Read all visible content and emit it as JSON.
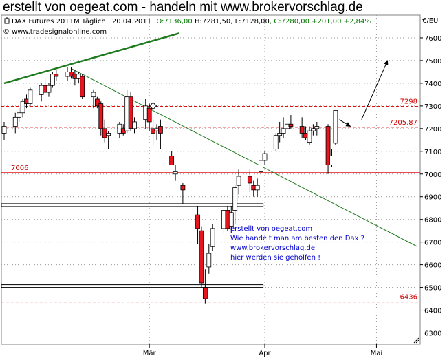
{
  "title": "erstellt von oegeat.com - handeln mit www.brokervorschlag.de",
  "instrument": "DAX Futures 2011M Täglich",
  "date": "20.04.2011",
  "ohlc": {
    "open": "O:7136,00",
    "high": "H:7281,50",
    "low": "L:7128,00",
    "close": "C:7280,00 +201,00 +2,84%"
  },
  "source": "www.tradesignalonline.com",
  "unit": "€/EU",
  "colors": {
    "bull": "#ffffff",
    "bear": "#e8141e",
    "trend": "#1e7a1e",
    "level": "#e01010",
    "note": "#0000cc",
    "grid": "#9a9a9a"
  },
  "annotation": [
    "erstellt von oegeat.com",
    "Wie handelt man am besten den Dax ?",
    "www.brokervorschlag.de",
    "hier werden sie geholfen !"
  ],
  "chart_data": {
    "type": "candlestick",
    "ylim": [
      6250,
      7700
    ],
    "yticks": [
      6300,
      6400,
      6500,
      6600,
      6700,
      6800,
      6900,
      7000,
      7100,
      7200,
      7300,
      7400,
      7500,
      7600
    ],
    "ytick_labels": [
      "6300",
      "6400",
      "6500",
      "6600",
      "6700",
      "6800",
      "6900",
      "7000",
      "7100",
      "7200",
      "7300",
      "7400",
      "7500",
      "7600"
    ],
    "xticks": [
      "Mär",
      "Apr",
      "Mai"
    ],
    "x_start": "2011-01-21",
    "x_end": "2011-05-12",
    "candles": [
      {
        "d": "2011-01-21",
        "o": 7180,
        "h": 7230,
        "l": 7150,
        "c": 7210
      },
      {
        "d": "2011-01-24",
        "o": 7210,
        "h": 7270,
        "l": 7180,
        "c": 7250
      },
      {
        "d": "2011-01-25",
        "o": 7250,
        "h": 7290,
        "l": 7230,
        "c": 7270
      },
      {
        "d": "2011-01-26",
        "o": 7270,
        "h": 7330,
        "l": 7250,
        "c": 7320
      },
      {
        "d": "2011-01-27",
        "o": 7330,
        "h": 7350,
        "l": 7290,
        "c": 7310
      },
      {
        "d": "2011-01-28",
        "o": 7310,
        "h": 7380,
        "l": 7300,
        "c": 7370
      },
      {
        "d": "2011-01-31",
        "o": 7350,
        "h": 7400,
        "l": 7320,
        "c": 7390
      },
      {
        "d": "2011-02-01",
        "o": 7390,
        "h": 7420,
        "l": 7360,
        "c": 7360
      },
      {
        "d": "2011-02-02",
        "o": 7360,
        "h": 7400,
        "l": 7340,
        "c": 7390
      },
      {
        "d": "2011-02-03",
        "o": 7390,
        "h": 7450,
        "l": 7380,
        "c": 7440
      },
      {
        "d": "2011-02-04",
        "o": 7440,
        "h": 7460,
        "l": 7410,
        "c": 7430
      },
      {
        "d": "2011-02-07",
        "o": 7430,
        "h": 7470,
        "l": 7410,
        "c": 7450
      },
      {
        "d": "2011-02-08",
        "o": 7450,
        "h": 7470,
        "l": 7420,
        "c": 7430
      },
      {
        "d": "2011-02-09",
        "o": 7440,
        "h": 7460,
        "l": 7390,
        "c": 7420
      },
      {
        "d": "2011-02-10",
        "o": 7420,
        "h": 7450,
        "l": 7400,
        "c": 7440
      },
      {
        "d": "2011-02-11",
        "o": 7430,
        "h": 7440,
        "l": 7330,
        "c": 7340
      },
      {
        "d": "2011-02-14",
        "o": 7340,
        "h": 7370,
        "l": 7290,
        "c": 7360
      },
      {
        "d": "2011-02-15",
        "o": 7330,
        "h": 7340,
        "l": 7290,
        "c": 7300
      },
      {
        "d": "2011-02-16",
        "o": 7310,
        "h": 7320,
        "l": 7170,
        "c": 7200
      },
      {
        "d": "2011-02-17",
        "o": 7200,
        "h": 7240,
        "l": 7140,
        "c": 7160
      },
      {
        "d": "2011-02-18",
        "o": 7170,
        "h": 7190,
        "l": 7110,
        "c": 7180
      },
      {
        "d": "2011-02-21",
        "o": 7180,
        "h": 7230,
        "l": 7160,
        "c": 7220
      },
      {
        "d": "2011-02-22",
        "o": 7200,
        "h": 7220,
        "l": 7170,
        "c": 7180
      },
      {
        "d": "2011-02-23",
        "o": 7190,
        "h": 7370,
        "l": 7180,
        "c": 7340
      },
      {
        "d": "2011-02-24",
        "o": 7340,
        "h": 7360,
        "l": 7190,
        "c": 7200
      },
      {
        "d": "2011-02-25",
        "o": 7200,
        "h": 7250,
        "l": 7180,
        "c": 7230
      },
      {
        "d": "2011-02-28",
        "o": 7240,
        "h": 7330,
        "l": 7200,
        "c": 7300
      },
      {
        "d": "2011-03-01",
        "o": 7290,
        "h": 7310,
        "l": 7190,
        "c": 7230
      },
      {
        "d": "2011-03-02",
        "o": 7200,
        "h": 7240,
        "l": 7130,
        "c": 7180
      },
      {
        "d": "2011-03-03",
        "o": 7190,
        "h": 7220,
        "l": 7150,
        "c": 7200
      },
      {
        "d": "2011-03-04",
        "o": 7210,
        "h": 7240,
        "l": 7110,
        "c": 7180
      },
      {
        "d": "2011-03-07",
        "o": 7080,
        "h": 7100,
        "l": 7040,
        "c": 7040
      },
      {
        "d": "2011-03-08",
        "o": 7000,
        "h": 7040,
        "l": 6970,
        "c": 7010
      },
      {
        "d": "2011-03-10",
        "o": 6950,
        "h": 6960,
        "l": 6870,
        "c": 6930
      },
      {
        "d": "2011-03-14",
        "o": 6820,
        "h": 6860,
        "l": 6690,
        "c": 6760
      },
      {
        "d": "2011-03-15",
        "o": 6750,
        "h": 6770,
        "l": 6500,
        "c": 6520
      },
      {
        "d": "2011-03-16",
        "o": 6500,
        "h": 6580,
        "l": 6430,
        "c": 6450
      },
      {
        "d": "2011-03-17",
        "o": 6590,
        "h": 6690,
        "l": 6560,
        "c": 6650
      },
      {
        "d": "2011-03-18",
        "o": 6680,
        "h": 6780,
        "l": 6660,
        "c": 6760
      },
      {
        "d": "2011-03-21",
        "o": 6760,
        "h": 6840,
        "l": 6740,
        "c": 6840
      },
      {
        "d": "2011-03-22",
        "o": 6840,
        "h": 6860,
        "l": 6750,
        "c": 6760
      },
      {
        "d": "2011-03-23",
        "o": 6770,
        "h": 6860,
        "l": 6740,
        "c": 6830
      },
      {
        "d": "2011-03-24",
        "o": 6840,
        "h": 6950,
        "l": 6780,
        "c": 6940
      },
      {
        "d": "2011-03-25",
        "o": 6950,
        "h": 7020,
        "l": 6910,
        "c": 6990
      },
      {
        "d": "2011-03-28",
        "o": 6990,
        "h": 7020,
        "l": 6920,
        "c": 6960
      },
      {
        "d": "2011-03-29",
        "o": 6950,
        "h": 6970,
        "l": 6900,
        "c": 6930
      },
      {
        "d": "2011-03-30",
        "o": 6930,
        "h": 6980,
        "l": 6900,
        "c": 6950
      },
      {
        "d": "2011-03-31",
        "o": 7010,
        "h": 7060,
        "l": 7000,
        "c": 7060
      },
      {
        "d": "2011-04-01",
        "o": 7060,
        "h": 7100,
        "l": 7040,
        "c": 7090
      },
      {
        "d": "2011-04-04",
        "o": 7110,
        "h": 7180,
        "l": 7100,
        "c": 7170
      },
      {
        "d": "2011-04-05",
        "o": 7170,
        "h": 7230,
        "l": 7140,
        "c": 7180
      },
      {
        "d": "2011-04-06",
        "o": 7180,
        "h": 7250,
        "l": 7160,
        "c": 7200
      },
      {
        "d": "2011-04-07",
        "o": 7200,
        "h": 7250,
        "l": 7170,
        "c": 7220
      },
      {
        "d": "2011-04-08",
        "o": 7220,
        "h": 7260,
        "l": 7200,
        "c": 7210
      },
      {
        "d": "2011-04-11",
        "o": 7210,
        "h": 7250,
        "l": 7160,
        "c": 7180
      },
      {
        "d": "2011-04-12",
        "o": 7180,
        "h": 7210,
        "l": 7150,
        "c": 7160
      },
      {
        "d": "2011-04-13",
        "o": 7140,
        "h": 7210,
        "l": 7130,
        "c": 7190
      },
      {
        "d": "2011-04-14",
        "o": 7190,
        "h": 7220,
        "l": 7170,
        "c": 7200
      },
      {
        "d": "2011-04-15",
        "o": 7200,
        "h": 7230,
        "l": 7170,
        "c": 7210
      },
      {
        "d": "2011-04-18",
        "o": 7210,
        "h": 7220,
        "l": 7000,
        "c": 7040
      },
      {
        "d": "2011-04-19",
        "o": 7040,
        "h": 7110,
        "l": 7030,
        "c": 7080
      },
      {
        "d": "2011-04-20",
        "o": 7136,
        "h": 7281.5,
        "l": 7128,
        "c": 7280
      }
    ],
    "levels": [
      {
        "value": 7298,
        "label": "7298",
        "style": "dashed"
      },
      {
        "value": 7205.87,
        "label": "7205,87",
        "style": "dashed"
      },
      {
        "value": 7006,
        "label": "7006",
        "style": "solid"
      },
      {
        "value": 6436,
        "label": "6436",
        "style": "dashed"
      }
    ],
    "trendlines": [
      {
        "from": [
          "2011-01-21",
          7400
        ],
        "to": [
          "2011-03-09",
          7620
        ],
        "weight": "thick"
      },
      {
        "from": [
          "2011-02-08",
          7465
        ],
        "to": [
          "2011-05-12",
          6680
        ],
        "weight": "thin"
      }
    ],
    "support_bands": [
      {
        "from": "2011-01-21",
        "to": "2011-03-31",
        "value": 6863
      },
      {
        "from": "2011-01-21",
        "to": "2011-03-31",
        "value": 6506
      }
    ],
    "projection_arrows": [
      {
        "from": [
          "2011-04-21",
          7240
        ],
        "to": [
          "2011-04-24",
          7210
        ]
      },
      {
        "from": [
          "2011-04-27",
          7240
        ],
        "to": [
          "2011-05-04",
          7500
        ]
      }
    ],
    "markers": [
      {
        "d": "2011-03-02",
        "y": 7300,
        "shape": "diamond"
      },
      {
        "d": "2011-04-26",
        "y": 6260,
        "shape": "resize-grip"
      }
    ]
  }
}
